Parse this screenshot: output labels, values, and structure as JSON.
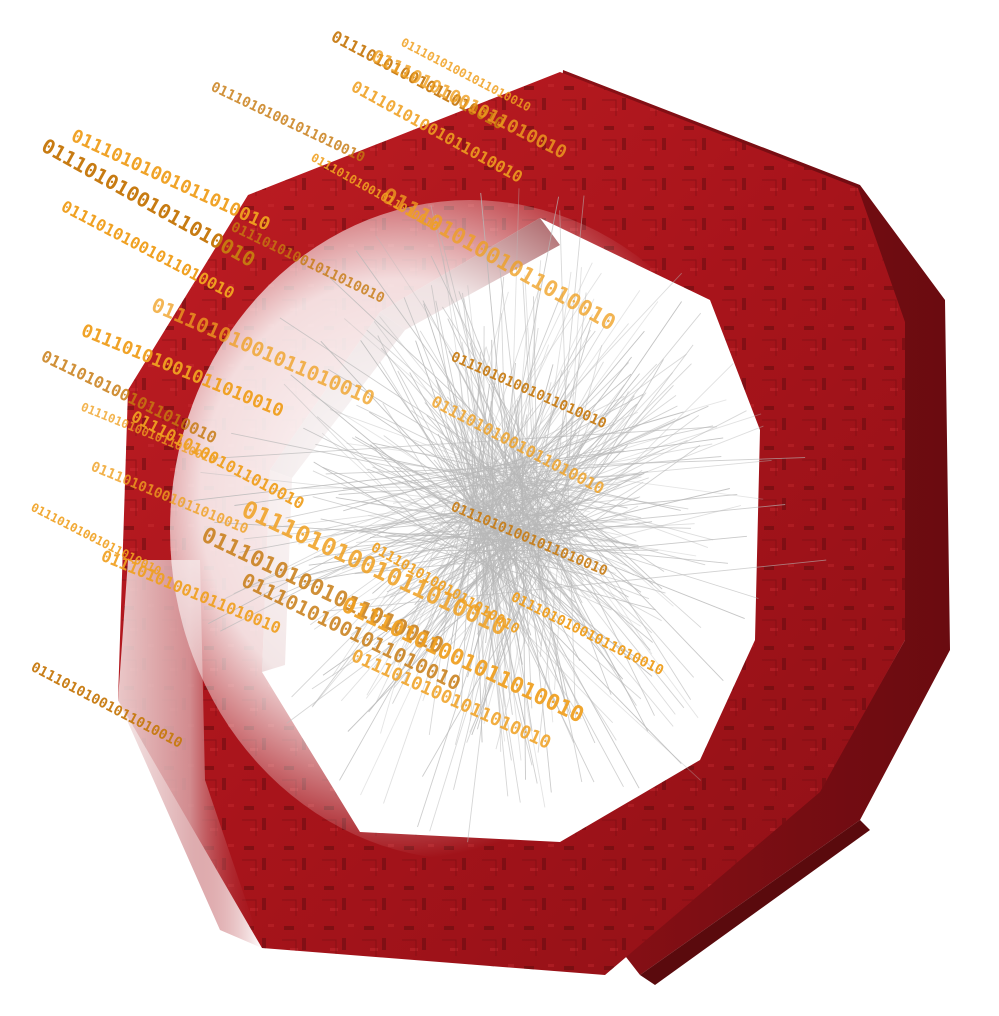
{
  "scene": {
    "subject": "octagon-frame",
    "background_color": "#ffffff",
    "frame": {
      "front_color": "#a8141b",
      "side_color": "#7d0e13",
      "dark_color": "#5a0a0d",
      "highlight_color": "#ffffff"
    },
    "wires": {
      "color": "#b8b8b8",
      "count": 320
    },
    "binary": {
      "color": "#f0a020",
      "shade_color": "#c77a10",
      "strings": [
        "01110101001011010010",
        "01110101001011010010",
        "01110101001011010010",
        "01110101001011010010",
        "01110101001011010010",
        "01110101001011010010",
        "01110101001011010010",
        "01110101001011010010",
        "01110101001011010010",
        "01110101001011010010",
        "01110101001011010010",
        "01110101001011010010",
        "01110101001011010010",
        "01110101001011010010",
        "01110101001011010010",
        "01110101001011010010",
        "01110101001011010010",
        "01110101001011010010",
        "01110101001011010010",
        "01110101001011010010",
        "01110101001011010010",
        "01110101001011010010",
        "01110101001011010010",
        "01110101001011010010",
        "01110101001011010010",
        "01110101001011010010",
        "01110101001011010010",
        "01110101001011010010",
        "01110101001011010010",
        "01110101001011010010"
      ]
    }
  }
}
